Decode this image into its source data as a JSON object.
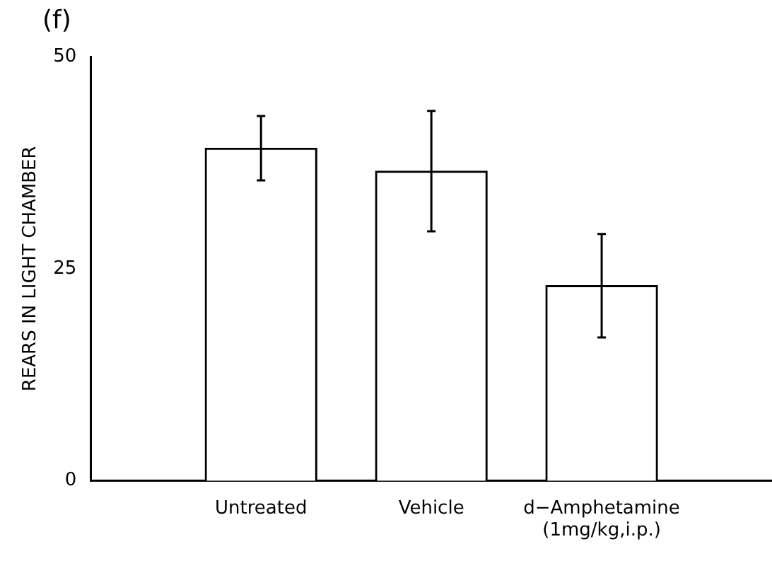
{
  "chart_data": {
    "type": "bar",
    "title": "(f)",
    "ylabel": "REARS IN LIGHT CHAMBER",
    "categories": [
      "Untreated",
      "Vehicle",
      "d−Amphetamine\n(1mg/kg,i.p.)"
    ],
    "values": [
      39.2,
      36.5,
      23.0
    ],
    "errors": [
      [
        35.4,
        43.0
      ],
      [
        29.4,
        43.6
      ],
      [
        16.9,
        29.1
      ]
    ],
    "color": "#ffffff",
    "ylim": [
      0,
      50
    ],
    "yticks": [
      0,
      25,
      50
    ],
    "grid": false,
    "legend": false
  }
}
